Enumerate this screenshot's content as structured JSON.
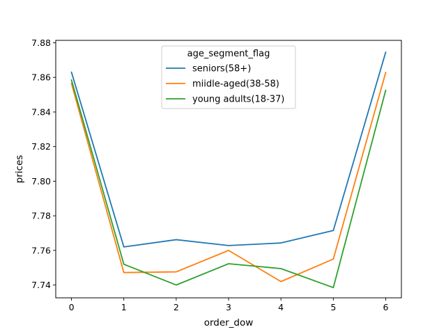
{
  "chart_data": {
    "type": "line",
    "title": "",
    "xlabel": "order_dow",
    "ylabel": "prices",
    "x": [
      0,
      1,
      2,
      3,
      4,
      5,
      6
    ],
    "xticks": [
      "0",
      "1",
      "2",
      "3",
      "4",
      "5",
      "6"
    ],
    "xlim": [
      -0.3,
      6.3
    ],
    "yticks": [
      "7.74",
      "7.76",
      "7.78",
      "7.80",
      "7.82",
      "7.84",
      "7.86",
      "7.88"
    ],
    "ylim": [
      7.7326,
      7.8814
    ],
    "grid": false,
    "legend": {
      "title": "age_segment_flag",
      "placement": "upper-center"
    },
    "series": [
      {
        "name": "seniors(58+)",
        "color": "#1f77b4",
        "values": [
          7.863,
          7.762,
          7.7662,
          7.7628,
          7.7643,
          7.7715,
          7.8745
        ]
      },
      {
        "name": "miidle-aged(38-58)",
        "color": "#ff7f0e",
        "values": [
          7.8565,
          7.7472,
          7.7476,
          7.76,
          7.742,
          7.755,
          7.8628
        ]
      },
      {
        "name": "young adults(18-37)",
        "color": "#2ca02c",
        "values": [
          7.8585,
          7.752,
          7.74,
          7.7523,
          7.7495,
          7.7385,
          7.8525
        ]
      }
    ]
  }
}
